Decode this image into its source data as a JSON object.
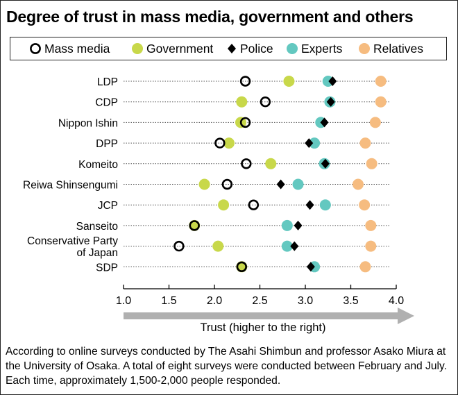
{
  "title": "Degree of trust in mass media, government and others",
  "legend": [
    {
      "key": "mass_media",
      "label": "Mass media",
      "style": "ring",
      "color": "#000000"
    },
    {
      "key": "government",
      "label": "Government",
      "style": "dot",
      "color": "#c8d84a"
    },
    {
      "key": "police",
      "label": "Police",
      "style": "diamond",
      "color": "#000000"
    },
    {
      "key": "experts",
      "label": "Experts",
      "style": "dot",
      "color": "#63c8c0"
    },
    {
      "key": "relatives",
      "label": "Relatives",
      "style": "dot",
      "color": "#f6bc80"
    }
  ],
  "chart_data": {
    "type": "scatter",
    "title": "Degree of trust in mass media, government and others",
    "xlabel": "Trust (higher to the right)",
    "ylabel": "",
    "xlim": [
      1.0,
      4.0
    ],
    "xticks": [
      "1.0",
      "1.5",
      "2.0",
      "2.5",
      "3.0",
      "3.5",
      "4.0"
    ],
    "grid": "dotted horizontal guide per party",
    "categories": [
      "LDP",
      "CDP",
      "Nippon Ishin",
      "DPP",
      "Komeito",
      "Reiwa Shinsengumi",
      "JCP",
      "Sanseito",
      "Conservative Party of Japan",
      "SDP"
    ],
    "category_lines": [
      [
        "LDP"
      ],
      [
        "CDP"
      ],
      [
        "Nippon Ishin"
      ],
      [
        "DPP"
      ],
      [
        "Komeito"
      ],
      [
        "Reiwa Shinsengumi"
      ],
      [
        "JCP"
      ],
      [
        "Sanseito"
      ],
      [
        "Conservative Party",
        "of Japan"
      ],
      [
        "SDP"
      ]
    ],
    "series": [
      {
        "name": "Mass media",
        "key": "mass_media",
        "values": [
          2.34,
          2.56,
          2.34,
          2.06,
          2.35,
          2.14,
          2.43,
          1.78,
          1.61,
          2.3
        ]
      },
      {
        "name": "Government",
        "key": "government",
        "values": [
          2.82,
          2.3,
          2.29,
          2.16,
          2.62,
          1.89,
          2.1,
          1.78,
          2.04,
          2.3
        ]
      },
      {
        "name": "Police",
        "key": "police",
        "values": [
          3.3,
          3.28,
          3.21,
          3.04,
          3.22,
          2.73,
          3.05,
          2.92,
          2.88,
          3.06
        ]
      },
      {
        "name": "Experts",
        "key": "experts",
        "values": [
          3.25,
          3.27,
          3.17,
          3.1,
          3.21,
          2.92,
          3.22,
          2.8,
          2.8,
          3.1
        ]
      },
      {
        "name": "Relatives",
        "key": "relatives",
        "values": [
          3.83,
          3.83,
          3.77,
          3.66,
          3.73,
          3.58,
          3.65,
          3.72,
          3.72,
          3.66
        ]
      }
    ],
    "draw_order": [
      "relatives",
      "government",
      "experts",
      "mass_media",
      "police"
    ],
    "axis_colors": {
      "line": "#000000",
      "arrow": "#b0b0b0",
      "guide": "#555555"
    }
  },
  "footnote": "According to online surveys conducted by The Asahi Shimbun and professor Asako Miura at the University of Osaka. A total of eight surveys were conducted between February and July. Each time, approximately 1,500-2,000 people responded."
}
